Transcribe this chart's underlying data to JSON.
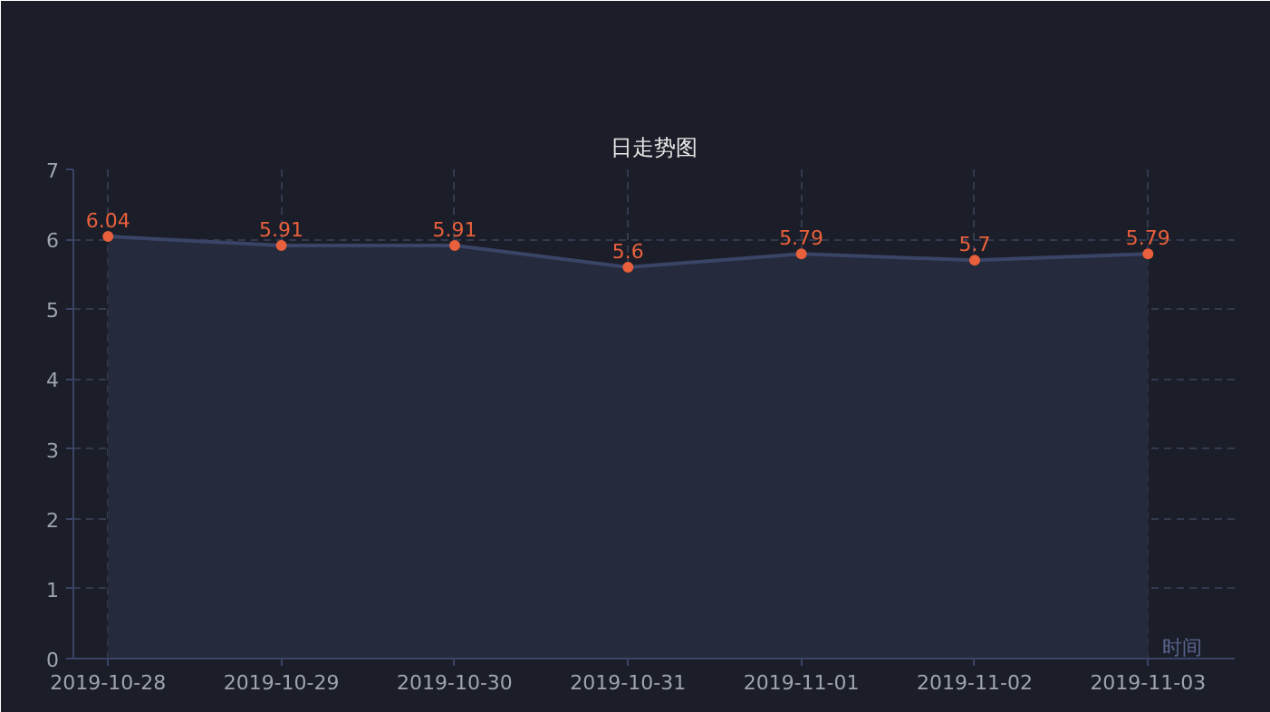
{
  "chart_data": {
    "type": "area",
    "title": "日走势图",
    "xlabel": "时间",
    "categories": [
      "2019-10-28",
      "2019-10-29",
      "2019-10-30",
      "2019-10-31",
      "2019-11-01",
      "2019-11-02",
      "2019-11-03"
    ],
    "series": [
      {
        "color": "#3a4466",
        "colors": [
          "#e8603c",
          "#e8603c",
          "#e8603c",
          "#e8603c",
          "#e8603c",
          "#e8603c",
          "#e8603c"
        ],
        "values": [
          6.04,
          5.91,
          5.91,
          5.6,
          5.79,
          5.7,
          5.79
        ]
      }
    ],
    "ylim": [
      0,
      7
    ],
    "yticks": [
      0,
      1,
      2,
      3,
      4,
      5,
      6,
      7
    ],
    "grid": true,
    "data_labels": true,
    "marker": "circle"
  }
}
